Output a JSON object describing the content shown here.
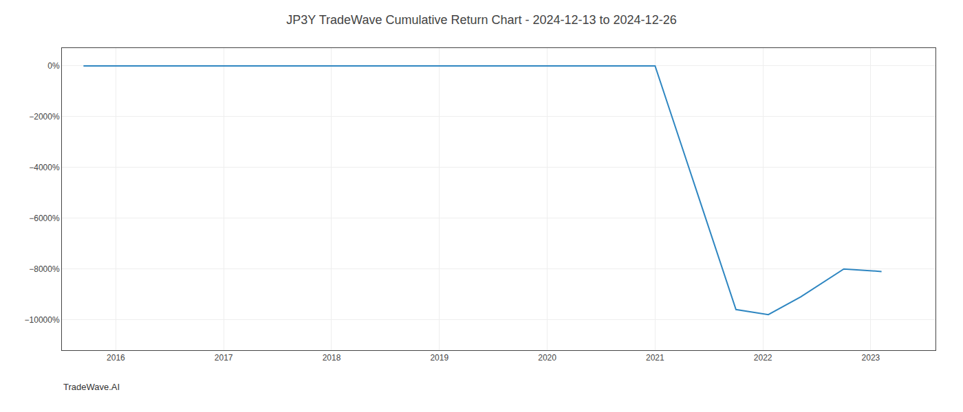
{
  "chart_data": {
    "type": "line",
    "title": "JP3Y TradeWave Cumulative Return Chart - 2024-12-13 to 2024-12-26",
    "annotations": [
      "TradeWave.AI"
    ],
    "x": [
      2015.7,
      2016.0,
      2017.0,
      2018.0,
      2019.0,
      2020.0,
      2020.85,
      2021.0,
      2021.75,
      2022.05,
      2022.35,
      2022.75,
      2023.1
    ],
    "values": [
      0,
      0,
      0,
      0,
      0,
      0,
      0,
      0,
      -9600,
      -9800,
      -9100,
      -8000,
      -8100
    ],
    "color": "#2e86c1",
    "xlim": [
      2015.5,
      2023.6
    ],
    "ylim": [
      -11200,
      700
    ],
    "xticks": [
      2016,
      2017,
      2018,
      2019,
      2020,
      2021,
      2022,
      2023
    ],
    "yticks": [
      {
        "value": 0,
        "label": "0%"
      },
      {
        "value": -2000,
        "label": "−2000%"
      },
      {
        "value": -4000,
        "label": "−4000%"
      },
      {
        "value": -6000,
        "label": "−6000%"
      },
      {
        "value": -8000,
        "label": "−8000%"
      },
      {
        "value": -10000,
        "label": "−10000%"
      }
    ],
    "grid": true
  }
}
